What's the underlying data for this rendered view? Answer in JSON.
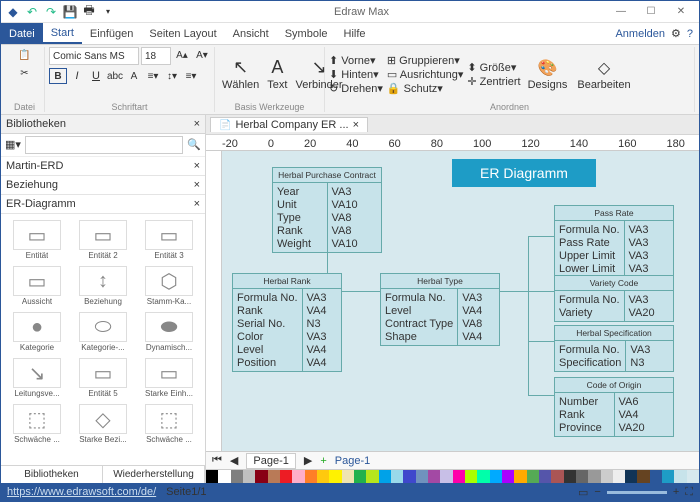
{
  "app": {
    "title": "Edraw Max"
  },
  "menu": {
    "file": "Datei",
    "items": [
      "Start",
      "Einfügen",
      "Seiten Layout",
      "Ansicht",
      "Symbole",
      "Hilfe"
    ],
    "login": "Anmelden"
  },
  "ribbon": {
    "font_name": "Comic Sans MS",
    "font_size": "18",
    "groups": {
      "datei": "Datei",
      "schrift": "Schriftart",
      "tools": "Basis Werkzeuge",
      "arrange": "Anordnen"
    },
    "tools": {
      "select": "Wählen",
      "text": "Text",
      "connector": "Verbinder"
    },
    "arrange": {
      "vorne": "Vorne",
      "hinten": "Hinten",
      "drehen": "Drehen",
      "gruppieren": "Gruppieren",
      "ausrichtung": "Ausrichtung",
      "groesse": "Größe",
      "zentriert": "Zentriert",
      "schutz": "Schutz",
      "designs": "Designs",
      "bearbeiten": "Bearbeiten"
    }
  },
  "sidebar": {
    "title": "Bibliotheken",
    "cats": [
      "Martin-ERD",
      "Beziehung",
      "ER-Diagramm"
    ],
    "shapes": [
      "Entität",
      "Entität 2",
      "Entität 3",
      "Aussicht",
      "Beziehung",
      "Stamm-Ka...",
      "Kategorie",
      "Kategorie-...",
      "Dynamisch...",
      "Leitungsve...",
      "Entität 5",
      "Starke Einh...",
      "Schwäche ...",
      "Starke Bezi...",
      "Schwäche ..."
    ],
    "tabs": [
      "Bibliotheken",
      "Wiederherstellung"
    ]
  },
  "doc": {
    "tab": "Herbal Company ER ..."
  },
  "er": {
    "title": "ER Diagramm",
    "boxes": {
      "purchase": {
        "hdr": "Herbal Purchase Contract",
        "left": [
          "Year",
          "Unit",
          "Type",
          "Rank",
          "Weight"
        ],
        "right": [
          "VA3",
          "VA10",
          "VA8",
          "VA8",
          "VA10"
        ]
      },
      "rank": {
        "hdr": "Herbal Rank",
        "left": [
          "Formula No.",
          "Rank",
          "Serial No.",
          "Color",
          "Level",
          "Position"
        ],
        "right": [
          "VA3",
          "VA4",
          "N3",
          "VA3",
          "VA4",
          "VA4"
        ]
      },
      "type": {
        "hdr": "Herbal Type",
        "left": [
          "Formula No.",
          "Level",
          "Contract Type",
          "Shape"
        ],
        "right": [
          "VA3",
          "VA4",
          "VA8",
          "VA4"
        ]
      },
      "passrate": {
        "hdr": "Pass Rate",
        "left": [
          "Formula No.",
          "Pass Rate",
          "Upper Limit",
          "Lower Limit"
        ],
        "right": [
          "VA3",
          "VA3",
          "VA3",
          "VA3"
        ]
      },
      "variety": {
        "hdr": "Variety Code",
        "left": [
          "Formula No.",
          "Variety"
        ],
        "right": [
          "VA3",
          "VA20"
        ]
      },
      "spec": {
        "hdr": "Herbal Specification",
        "left": [
          "Formula No.",
          "Specification"
        ],
        "right": [
          "VA3",
          "N3"
        ]
      },
      "origin": {
        "hdr": "Code of Origin",
        "left": [
          "Number",
          "Rank",
          "Province"
        ],
        "right": [
          "VA6",
          "VA4",
          "VA20"
        ]
      }
    }
  },
  "page_tabs": {
    "p1": "Page-1",
    "p2": "Page-1"
  },
  "status": {
    "url": "https://www.edrawsoft.com/de/",
    "page": "Seite1/1"
  },
  "colors": [
    "#000",
    "#fff",
    "#7f7f7f",
    "#c0c0c0",
    "#880015",
    "#b97a57",
    "#ed1c24",
    "#ffaec9",
    "#ff7f27",
    "#ffc90e",
    "#fff200",
    "#efe4b0",
    "#22b14c",
    "#b5e61d",
    "#00a2e8",
    "#99d9ea",
    "#3f48cc",
    "#7092be",
    "#a349a4",
    "#c8bfe7",
    "#f0a",
    "#af0",
    "#0fa",
    "#0af",
    "#a0f",
    "#fa0",
    "#5a5",
    "#55a",
    "#a55",
    "#333",
    "#666",
    "#999",
    "#ccc",
    "#eee",
    "#123456",
    "#654321",
    "#2b579a",
    "#1e9cc6",
    "#c7e3ea",
    "#d7e9ee"
  ]
}
